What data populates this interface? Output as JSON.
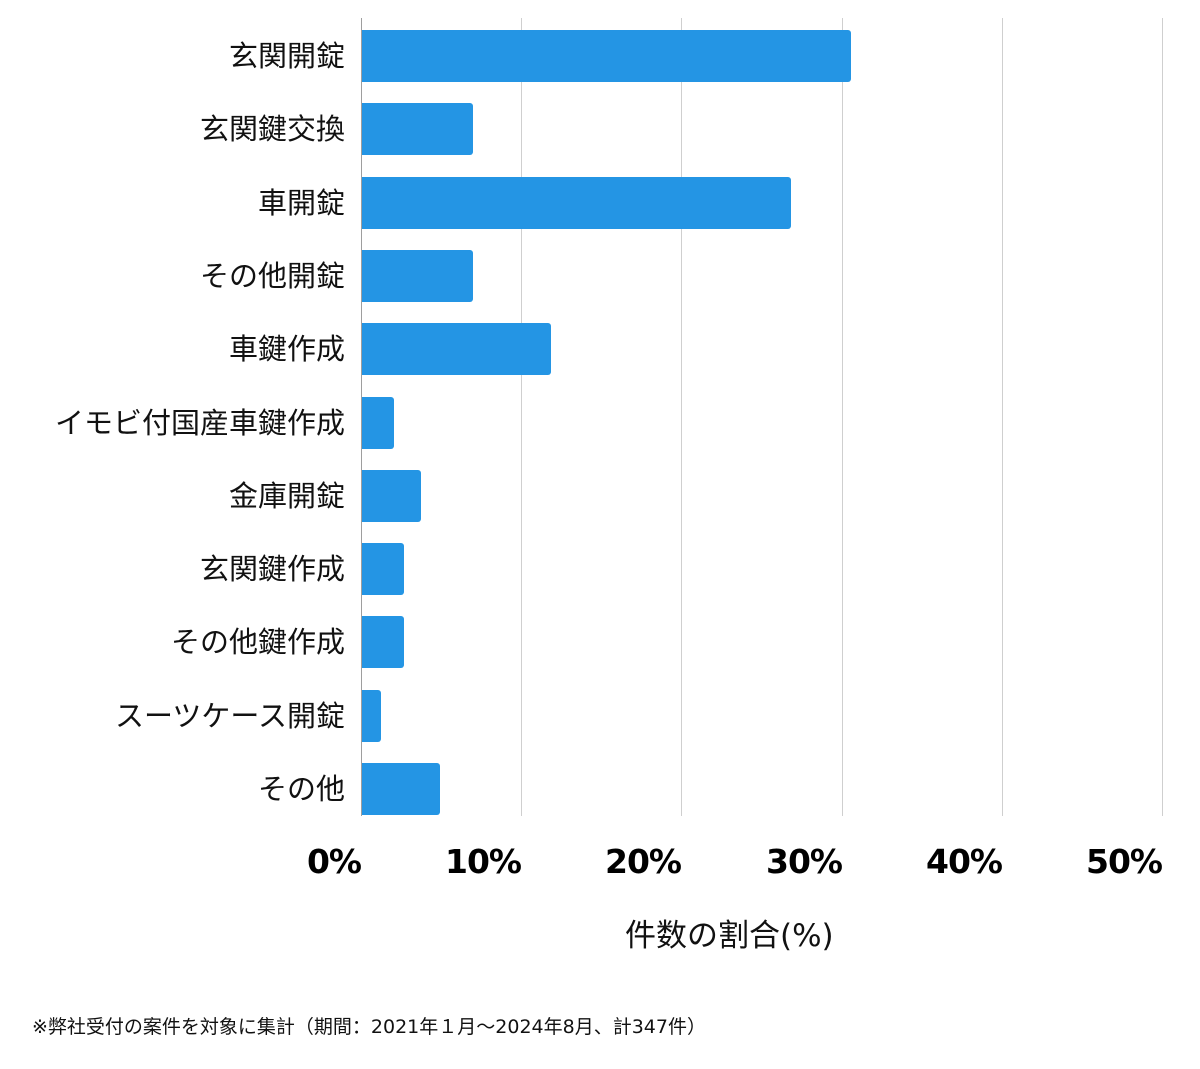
{
  "chart_data": {
    "type": "bar",
    "orientation": "horizontal",
    "title": "",
    "categories": [
      "玄関開錠",
      "玄関鍵交換",
      "車開錠",
      "その他開錠",
      "車鍵作成",
      "イモビ付国産車鍵作成",
      "金庫開錠",
      "玄関鍵作成",
      "その他鍵作成",
      "スーツケース開錠",
      "その他"
    ],
    "values": [
      30.5,
      6.9,
      26.8,
      6.9,
      11.8,
      2.0,
      3.7,
      2.6,
      2.6,
      1.2,
      4.9
    ],
    "xlabel": "件数の割合(%)",
    "ylabel": "",
    "xlim": [
      0,
      50
    ],
    "ticks": [
      "0%",
      "10%",
      "20%",
      "30%",
      "40%",
      "50%"
    ],
    "grid": true,
    "legend": null,
    "bar_color": "#2495e4",
    "note": "※弊社受付の案件を対象に集計（期間：2021年１月〜2024年8月、計347件）"
  }
}
